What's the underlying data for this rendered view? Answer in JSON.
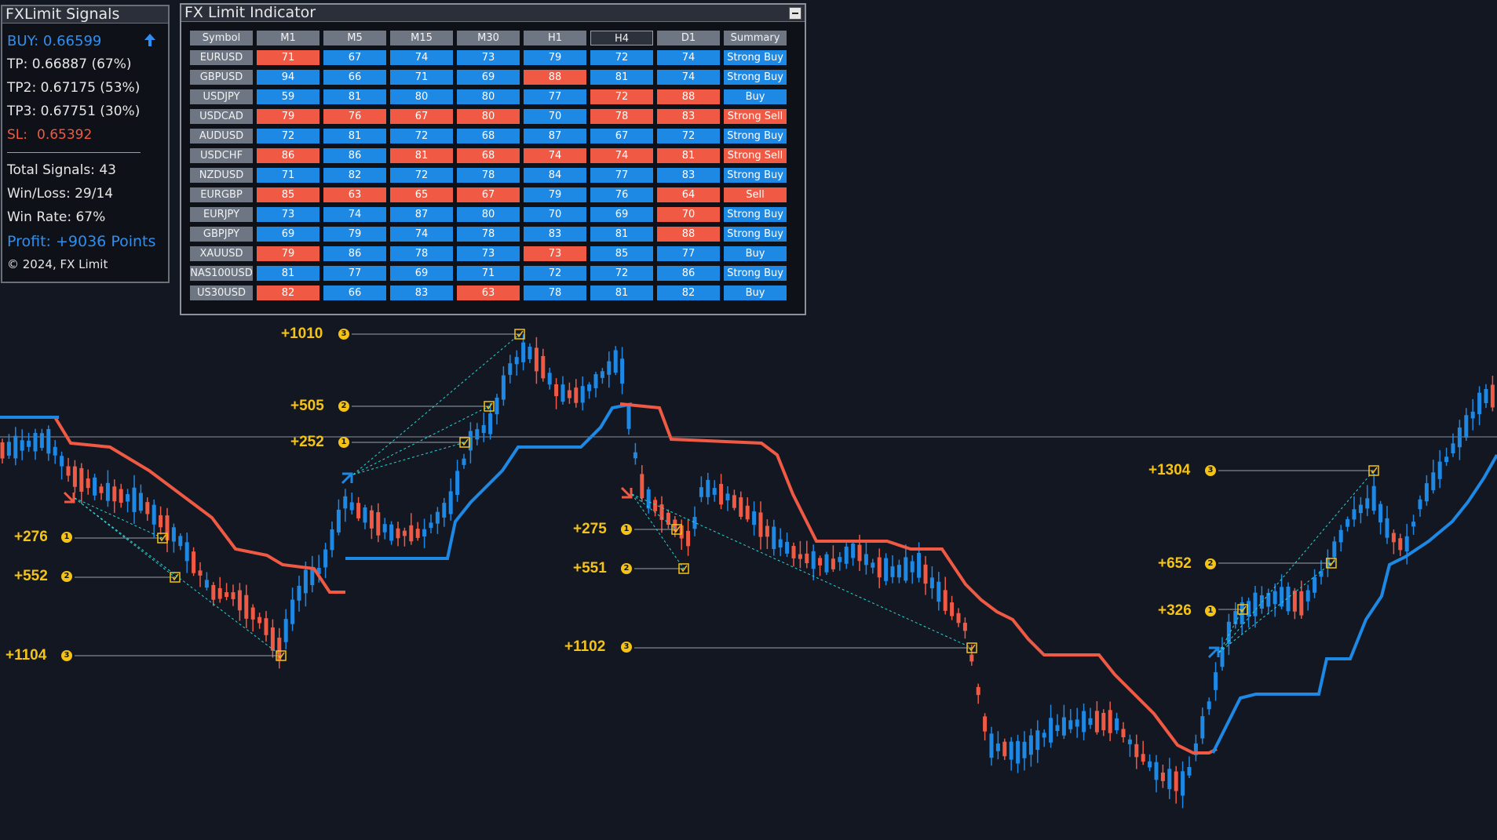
{
  "signals_panel": {
    "title": "FXLimit Signals",
    "buy": "BUY: 0.66599",
    "tp1": "TP: 0.66887 (67%)",
    "tp2": "TP2: 0.67175 (53%)",
    "tp3": "TP3: 0.67751 (30%)",
    "sl_label": "SL:",
    "sl_value": "0.65392",
    "total_signals": "Total Signals: 43",
    "win_loss": "Win/Loss: 29/14",
    "win_rate": "Win Rate: 67%",
    "profit": "Profit: +9036 Points",
    "copyright": "© 2024, FX Limit",
    "buy_icon": "arrow-up-icon"
  },
  "indicator_panel": {
    "title": "FX Limit Indicator",
    "headers": [
      "Symbol",
      "M1",
      "M5",
      "M15",
      "M30",
      "H1",
      "H4",
      "D1",
      "Summary"
    ],
    "active_header": "H4",
    "rows": [
      {
        "symbol": "EURUSD",
        "values": [
          71,
          67,
          74,
          73,
          79,
          72,
          74
        ],
        "colors": [
          "r",
          "b",
          "b",
          "b",
          "b",
          "b",
          "b"
        ],
        "summary": "Strong Buy",
        "summary_color": "b"
      },
      {
        "symbol": "GBPUSD",
        "values": [
          94,
          66,
          71,
          69,
          88,
          81,
          74
        ],
        "colors": [
          "b",
          "b",
          "b",
          "b",
          "r",
          "b",
          "b"
        ],
        "summary": "Strong Buy",
        "summary_color": "b"
      },
      {
        "symbol": "USDJPY",
        "values": [
          59,
          81,
          80,
          80,
          77,
          72,
          88
        ],
        "colors": [
          "b",
          "b",
          "b",
          "b",
          "b",
          "r",
          "r"
        ],
        "summary": "Buy",
        "summary_color": "b"
      },
      {
        "symbol": "USDCAD",
        "values": [
          79,
          76,
          67,
          80,
          70,
          78,
          83
        ],
        "colors": [
          "r",
          "r",
          "r",
          "r",
          "b",
          "r",
          "r"
        ],
        "summary": "Strong Sell",
        "summary_color": "r"
      },
      {
        "symbol": "AUDUSD",
        "values": [
          72,
          81,
          72,
          68,
          87,
          67,
          72
        ],
        "colors": [
          "b",
          "b",
          "b",
          "b",
          "b",
          "b",
          "b"
        ],
        "summary": "Strong Buy",
        "summary_color": "b"
      },
      {
        "symbol": "USDCHF",
        "values": [
          86,
          86,
          81,
          68,
          74,
          74,
          81
        ],
        "colors": [
          "r",
          "b",
          "r",
          "r",
          "r",
          "r",
          "r"
        ],
        "summary": "Strong Sell",
        "summary_color": "r"
      },
      {
        "symbol": "NZDUSD",
        "values": [
          71,
          82,
          72,
          78,
          84,
          77,
          83
        ],
        "colors": [
          "b",
          "b",
          "b",
          "b",
          "b",
          "b",
          "b"
        ],
        "summary": "Strong Buy",
        "summary_color": "b"
      },
      {
        "symbol": "EURGBP",
        "values": [
          85,
          63,
          65,
          67,
          79,
          76,
          64
        ],
        "colors": [
          "r",
          "r",
          "r",
          "r",
          "b",
          "b",
          "r"
        ],
        "summary": "Sell",
        "summary_color": "r"
      },
      {
        "symbol": "EURJPY",
        "values": [
          73,
          74,
          87,
          80,
          70,
          69,
          70
        ],
        "colors": [
          "b",
          "b",
          "b",
          "b",
          "b",
          "b",
          "r"
        ],
        "summary": "Strong Buy",
        "summary_color": "b"
      },
      {
        "symbol": "GBPJPY",
        "values": [
          69,
          79,
          74,
          78,
          83,
          81,
          88
        ],
        "colors": [
          "b",
          "b",
          "b",
          "b",
          "b",
          "b",
          "r"
        ],
        "summary": "Strong Buy",
        "summary_color": "b"
      },
      {
        "symbol": "XAUUSD",
        "values": [
          79,
          86,
          78,
          73,
          73,
          85,
          77
        ],
        "colors": [
          "r",
          "b",
          "b",
          "b",
          "r",
          "b",
          "b"
        ],
        "summary": "Buy",
        "summary_color": "b"
      },
      {
        "symbol": "NAS100USD",
        "values": [
          81,
          77,
          69,
          71,
          72,
          72,
          86
        ],
        "colors": [
          "b",
          "b",
          "b",
          "b",
          "b",
          "b",
          "b"
        ],
        "summary": "Strong Buy",
        "summary_color": "b"
      },
      {
        "symbol": "US30USD",
        "values": [
          82,
          66,
          83,
          63,
          78,
          81,
          82
        ],
        "colors": [
          "r",
          "b",
          "b",
          "r",
          "b",
          "b",
          "b"
        ],
        "summary": "Buy",
        "summary_color": "b"
      }
    ]
  },
  "chart_labels": [
    {
      "text": "+276",
      "n": "1"
    },
    {
      "text": "+552",
      "n": "2"
    },
    {
      "text": "+1104",
      "n": "3"
    },
    {
      "text": "+1010",
      "n": "3"
    },
    {
      "text": "+505",
      "n": "2"
    },
    {
      "text": "+252",
      "n": "1"
    },
    {
      "text": "+275",
      "n": "1"
    },
    {
      "text": "+551",
      "n": "2"
    },
    {
      "text": "+1102",
      "n": "3"
    },
    {
      "text": "+1304",
      "n": "3"
    },
    {
      "text": "+652",
      "n": "2"
    },
    {
      "text": "+326",
      "n": "1"
    }
  ],
  "colors": {
    "background": "#131722",
    "bull": "#1e88e5",
    "bear": "#f05a44",
    "accent_yellow": "#f5c316",
    "target_line": "#2bd4d4"
  }
}
